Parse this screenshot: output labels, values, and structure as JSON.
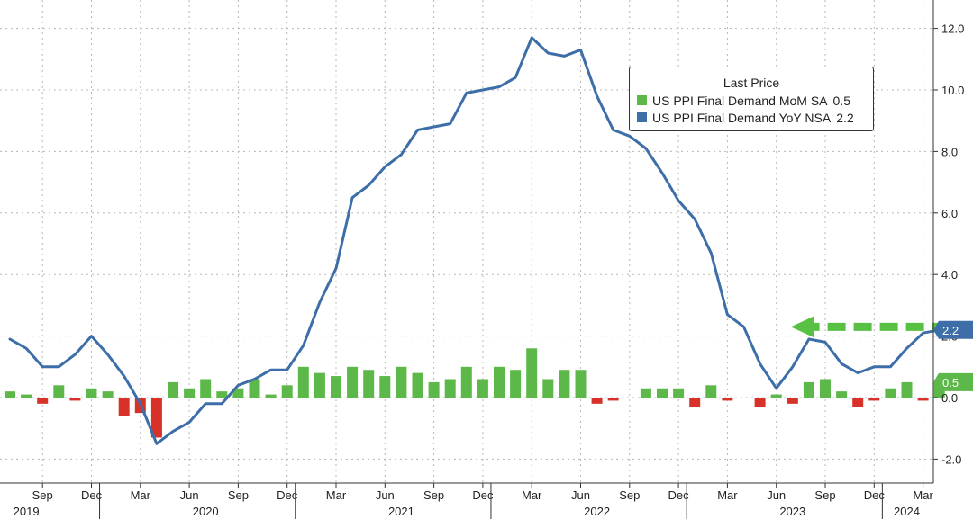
{
  "chart_data": {
    "type": "line",
    "title": "",
    "legend_title": "Last Price",
    "legend_placement": "top-right",
    "grid": true,
    "y_axis": {
      "position": "right",
      "ylim": [
        -2.6,
        12.8
      ],
      "ticks": [
        -2.0,
        0.0,
        2.0,
        4.0,
        6.0,
        8.0,
        10.0,
        12.0
      ],
      "tick_labels": [
        "-2.0",
        "0.0",
        "2.0",
        "4.0",
        "6.0",
        "8.0",
        "10.0",
        "12.0"
      ]
    },
    "x_axis": {
      "month_labels": [
        {
          "label": "Sep",
          "date": "2019-09"
        },
        {
          "label": "Dec",
          "date": "2019-12"
        },
        {
          "label": "Mar",
          "date": "2020-03"
        },
        {
          "label": "Jun",
          "date": "2020-06"
        },
        {
          "label": "Sep",
          "date": "2020-09"
        },
        {
          "label": "Dec",
          "date": "2020-12"
        },
        {
          "label": "Mar",
          "date": "2021-03"
        },
        {
          "label": "Jun",
          "date": "2021-06"
        },
        {
          "label": "Sep",
          "date": "2021-09"
        },
        {
          "label": "Dec",
          "date": "2021-12"
        },
        {
          "label": "Mar",
          "date": "2022-03"
        },
        {
          "label": "Jun",
          "date": "2022-06"
        },
        {
          "label": "Sep",
          "date": "2022-09"
        },
        {
          "label": "Dec",
          "date": "2022-12"
        },
        {
          "label": "Mar",
          "date": "2023-03"
        },
        {
          "label": "Jun",
          "date": "2023-06"
        },
        {
          "label": "Sep",
          "date": "2023-09"
        },
        {
          "label": "Dec",
          "date": "2023-12"
        },
        {
          "label": "Mar",
          "date": "2024-03"
        }
      ],
      "year_labels": [
        {
          "label": "2019",
          "date": "2019-08"
        },
        {
          "label": "2020",
          "date": "2020-07"
        },
        {
          "label": "2021",
          "date": "2021-07"
        },
        {
          "label": "2022",
          "date": "2022-07"
        },
        {
          "label": "2023",
          "date": "2023-07"
        },
        {
          "label": "2024",
          "date": "2024-02"
        }
      ],
      "year_boundaries": [
        "2019-12",
        "2020-12",
        "2021-12",
        "2022-12",
        "2023-12"
      ]
    },
    "dates": [
      "2019-07",
      "2019-08",
      "2019-09",
      "2019-10",
      "2019-11",
      "2019-12",
      "2020-01",
      "2020-02",
      "2020-03",
      "2020-04",
      "2020-05",
      "2020-06",
      "2020-07",
      "2020-08",
      "2020-09",
      "2020-10",
      "2020-11",
      "2020-12",
      "2021-01",
      "2021-02",
      "2021-03",
      "2021-04",
      "2021-05",
      "2021-06",
      "2021-07",
      "2021-08",
      "2021-09",
      "2021-10",
      "2021-11",
      "2021-12",
      "2022-01",
      "2022-02",
      "2022-03",
      "2022-04",
      "2022-05",
      "2022-06",
      "2022-07",
      "2022-08",
      "2022-09",
      "2022-10",
      "2022-11",
      "2022-12",
      "2023-01",
      "2023-02",
      "2023-03",
      "2023-04",
      "2023-05",
      "2023-06",
      "2023-07",
      "2023-08",
      "2023-09",
      "2023-10",
      "2023-11",
      "2023-12",
      "2024-01",
      "2024-02",
      "2024-03",
      "2024-04"
    ],
    "series": [
      {
        "name": "US PPI Final Demand MoM SA",
        "last_value": "0.5",
        "render": "bar",
        "color": "#5cb848",
        "negative_color": "#d7312a",
        "values": [
          0.2,
          0.1,
          -0.2,
          0.4,
          -0.1,
          0.3,
          0.2,
          -0.6,
          -0.5,
          -1.3,
          0.5,
          0.3,
          0.6,
          0.2,
          0.3,
          0.6,
          0.1,
          0.4,
          1.0,
          0.8,
          0.7,
          1.0,
          0.9,
          0.7,
          1.0,
          0.8,
          0.5,
          0.6,
          1.0,
          0.6,
          1.0,
          0.9,
          1.6,
          0.6,
          0.9,
          0.9,
          -0.2,
          -0.1,
          0.0,
          0.3,
          0.3,
          0.3,
          -0.3,
          0.4,
          -0.1,
          0.0,
          -0.3,
          0.1,
          -0.2,
          0.5,
          0.6,
          0.2,
          -0.3,
          -0.1,
          0.3,
          0.5,
          -0.1,
          0.5
        ]
      },
      {
        "name": "US PPI Final Demand YoY NSA",
        "last_value": "2.2",
        "render": "line",
        "color": "#3d6ea8",
        "values": [
          1.9,
          1.6,
          1.0,
          1.0,
          1.4,
          2.0,
          1.4,
          0.7,
          -0.2,
          -1.5,
          -1.1,
          -0.8,
          -0.2,
          -0.2,
          0.4,
          0.6,
          0.9,
          0.9,
          1.7,
          3.1,
          4.2,
          6.5,
          6.9,
          7.5,
          7.9,
          8.7,
          8.8,
          8.9,
          9.9,
          10.0,
          10.1,
          10.4,
          11.7,
          11.2,
          11.1,
          11.3,
          9.8,
          8.7,
          8.5,
          8.1,
          7.3,
          6.4,
          5.8,
          4.7,
          2.7,
          2.3,
          1.1,
          0.3,
          1.0,
          1.9,
          1.8,
          1.1,
          0.8,
          1.0,
          1.0,
          1.6,
          2.1,
          2.2
        ]
      }
    ],
    "value_tags": [
      {
        "series": "US PPI Final Demand YoY NSA",
        "text": "2.2",
        "value": 2.2,
        "color": "#3d6ea8"
      },
      {
        "series": "US PPI Final Demand MoM SA",
        "text": "0.5",
        "value": 0.5,
        "color": "#5cb848"
      }
    ],
    "annotation_arrow": {
      "color": "#58c043",
      "value": 2.3,
      "from_date": "2024-03",
      "to_date": "2023-06",
      "style": "dashed"
    }
  },
  "legend": {
    "title": "Last Price",
    "items": [
      {
        "name": "US PPI Final Demand MoM SA",
        "value": "0.5",
        "color": "#5cb848"
      },
      {
        "name": "US PPI Final Demand YoY NSA",
        "value": "2.2",
        "color": "#3d6ea8"
      }
    ]
  }
}
